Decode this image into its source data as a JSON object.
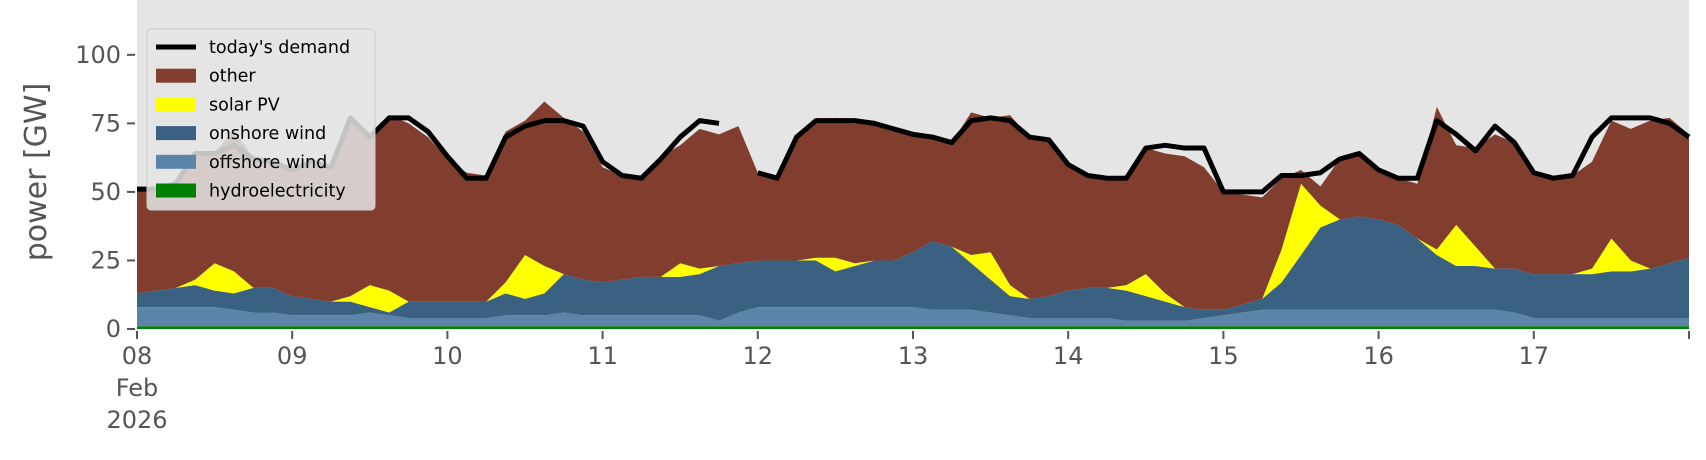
{
  "chart_data": {
    "type": "area",
    "subtype": "stacked area with demand line",
    "title": "",
    "xlabel": "",
    "ylabel": "power [GW]",
    "ylim": [
      0,
      120
    ],
    "xlim": [
      "2026-02-08T00:00",
      "2026-02-18T00:00"
    ],
    "y_ticks": [
      0,
      25,
      50,
      75,
      100
    ],
    "x_ticks": [
      {
        "value": "2026-02-08",
        "label": "08",
        "sublabel_month": "Feb",
        "sublabel_year": "2026"
      },
      {
        "value": "2026-02-09",
        "label": "09"
      },
      {
        "value": "2026-02-10",
        "label": "10"
      },
      {
        "value": "2026-02-11",
        "label": "11"
      },
      {
        "value": "2026-02-12",
        "label": "12"
      },
      {
        "value": "2026-02-13",
        "label": "13"
      },
      {
        "value": "2026-02-14",
        "label": "14"
      },
      {
        "value": "2026-02-15",
        "label": "15"
      },
      {
        "value": "2026-02-16",
        "label": "16"
      },
      {
        "value": "2026-02-17",
        "label": "17"
      }
    ],
    "grid": false,
    "legend_position": "top-left",
    "background": "#e5e5e5",
    "x": [
      "2026-02-08T00:00",
      "2026-02-08T03:00",
      "2026-02-08T06:00",
      "2026-02-08T09:00",
      "2026-02-08T12:00",
      "2026-02-08T15:00",
      "2026-02-08T18:00",
      "2026-02-08T21:00",
      "2026-02-09T00:00",
      "2026-02-09T03:00",
      "2026-02-09T06:00",
      "2026-02-09T09:00",
      "2026-02-09T12:00",
      "2026-02-09T15:00",
      "2026-02-09T18:00",
      "2026-02-09T21:00",
      "2026-02-10T00:00",
      "2026-02-10T03:00",
      "2026-02-10T06:00",
      "2026-02-10T09:00",
      "2026-02-10T12:00",
      "2026-02-10T15:00",
      "2026-02-10T18:00",
      "2026-02-10T21:00",
      "2026-02-11T00:00",
      "2026-02-11T03:00",
      "2026-02-11T06:00",
      "2026-02-11T09:00",
      "2026-02-11T12:00",
      "2026-02-11T15:00",
      "2026-02-11T18:00",
      "2026-02-11T21:00",
      "2026-02-12T00:00",
      "2026-02-12T03:00",
      "2026-02-12T06:00",
      "2026-02-12T09:00",
      "2026-02-12T12:00",
      "2026-02-12T15:00",
      "2026-02-12T18:00",
      "2026-02-12T21:00",
      "2026-02-13T00:00",
      "2026-02-13T03:00",
      "2026-02-13T06:00",
      "2026-02-13T09:00",
      "2026-02-13T12:00",
      "2026-02-13T15:00",
      "2026-02-13T18:00",
      "2026-02-13T21:00",
      "2026-02-14T00:00",
      "2026-02-14T03:00",
      "2026-02-14T06:00",
      "2026-02-14T09:00",
      "2026-02-14T12:00",
      "2026-02-14T15:00",
      "2026-02-14T18:00",
      "2026-02-14T21:00",
      "2026-02-15T00:00",
      "2026-02-15T03:00",
      "2026-02-15T06:00",
      "2026-02-15T09:00",
      "2026-02-15T12:00",
      "2026-02-15T15:00",
      "2026-02-15T18:00",
      "2026-02-15T21:00",
      "2026-02-16T00:00",
      "2026-02-16T03:00",
      "2026-02-16T06:00",
      "2026-02-16T09:00",
      "2026-02-16T12:00",
      "2026-02-16T15:00",
      "2026-02-16T18:00",
      "2026-02-16T21:00",
      "2026-02-17T00:00",
      "2026-02-17T03:00",
      "2026-02-17T06:00",
      "2026-02-17T09:00",
      "2026-02-17T12:00",
      "2026-02-17T15:00",
      "2026-02-17T18:00",
      "2026-02-17T21:00",
      "2026-02-18T00:00"
    ],
    "series": [
      {
        "name": "hydroelectricity",
        "color": "#008000",
        "values": [
          1,
          1,
          1,
          1,
          1,
          1,
          1,
          1,
          1,
          1,
          1,
          1,
          1,
          1,
          1,
          1,
          1,
          1,
          1,
          1,
          1,
          1,
          1,
          1,
          1,
          1,
          1,
          1,
          1,
          1,
          1,
          1,
          1,
          1,
          1,
          1,
          1,
          1,
          1,
          1,
          1,
          1,
          1,
          1,
          1,
          1,
          1,
          1,
          1,
          1,
          1,
          1,
          1,
          1,
          1,
          1,
          1,
          1,
          1,
          1,
          1,
          1,
          1,
          1,
          1,
          1,
          1,
          1,
          1,
          1,
          1,
          1,
          1,
          1,
          1,
          1,
          1,
          1,
          1,
          1,
          1
        ]
      },
      {
        "name": "offshore wind",
        "color": "#5b84a8",
        "values": [
          7,
          7,
          7,
          7,
          7,
          6,
          5,
          5,
          4,
          4,
          4,
          4,
          5,
          4,
          3,
          3,
          3,
          3,
          3,
          4,
          4,
          4,
          5,
          4,
          4,
          4,
          4,
          4,
          4,
          4,
          2,
          5,
          7,
          7,
          7,
          7,
          7,
          7,
          7,
          7,
          7,
          6,
          6,
          6,
          5,
          4,
          3,
          3,
          3,
          3,
          3,
          2,
          2,
          2,
          2,
          3,
          4,
          5,
          6,
          6,
          6,
          6,
          6,
          6,
          6,
          6,
          6,
          6,
          6,
          6,
          6,
          5,
          3,
          3,
          3,
          3,
          3,
          3,
          3,
          3,
          3
        ]
      },
      {
        "name": "onshore wind",
        "color": "#3b6182",
        "values": [
          5,
          6,
          7,
          8,
          6,
          6,
          9,
          9,
          7,
          6,
          5,
          5,
          2,
          1,
          6,
          6,
          6,
          6,
          6,
          8,
          6,
          8,
          14,
          13,
          12,
          13,
          14,
          14,
          14,
          15,
          20,
          18,
          17,
          17,
          17,
          17,
          13,
          15,
          17,
          17,
          20,
          25,
          23,
          17,
          12,
          7,
          7,
          8,
          10,
          11,
          11,
          11,
          9,
          7,
          5,
          3,
          2,
          3,
          4,
          10,
          20,
          30,
          33,
          34,
          33,
          31,
          26,
          20,
          16,
          16,
          15,
          16,
          16,
          16,
          16,
          16,
          17,
          17,
          18,
          20,
          22
        ]
      },
      {
        "name": "solar PV",
        "color": "#ffff00",
        "values": [
          0,
          0,
          0,
          2,
          10,
          8,
          0,
          0,
          0,
          0,
          0,
          2,
          8,
          8,
          0,
          0,
          0,
          0,
          0,
          4,
          16,
          10,
          0,
          0,
          0,
          0,
          0,
          0,
          5,
          2,
          0,
          0,
          0,
          0,
          0,
          1,
          5,
          1,
          0,
          0,
          0,
          0,
          0,
          3,
          10,
          4,
          0,
          0,
          0,
          0,
          0,
          2,
          8,
          3,
          0,
          0,
          0,
          0,
          0,
          12,
          26,
          8,
          0,
          0,
          0,
          0,
          0,
          2,
          15,
          7,
          0,
          0,
          0,
          0,
          0,
          2,
          12,
          4,
          0,
          0,
          0
        ]
      },
      {
        "name": "other",
        "color": "#813e2f",
        "values": [
          38,
          37,
          38,
          46,
          40,
          52,
          47,
          46,
          46,
          50,
          49,
          65,
          54,
          64,
          65,
          60,
          52,
          47,
          46,
          55,
          49,
          60,
          57,
          54,
          42,
          38,
          36,
          44,
          43,
          51,
          48,
          50,
          32,
          30,
          45,
          50,
          51,
          51,
          51,
          48,
          43,
          38,
          38,
          52,
          49,
          62,
          59,
          57,
          45,
          41,
          40,
          40,
          46,
          51,
          55,
          52,
          43,
          40,
          37,
          26,
          5,
          7,
          22,
          23,
          18,
          17,
          20,
          52,
          29,
          36,
          49,
          46,
          37,
          35,
          36,
          39,
          43,
          48,
          54,
          53,
          45
        ]
      }
    ],
    "demand": {
      "name": "today's demand",
      "color": "#000000",
      "values": [
        51,
        51,
        53,
        64,
        64,
        67,
        62,
        61,
        58,
        61,
        59,
        77,
        70,
        77,
        77,
        72,
        63,
        55,
        55,
        70,
        74,
        76,
        76,
        74,
        61,
        56,
        55,
        62,
        70,
        76,
        75,
        76,
        57,
        55,
        70,
        76,
        76,
        76,
        75,
        73,
        71,
        70,
        68,
        76,
        77,
        76,
        70,
        69,
        60,
        56,
        55,
        55,
        66,
        67,
        66,
        66,
        50,
        50,
        50,
        56,
        56,
        57,
        62,
        64,
        58,
        55,
        55,
        76,
        71,
        65,
        74,
        68,
        57,
        55,
        56,
        70,
        77,
        77,
        77,
        75,
        70
      ]
    },
    "gaps": [
      [
        "2026-02-11T18:00",
        "2026-02-12T00:00"
      ],
      [
        "2026-02-16T21:00",
        "2026-02-17T00:00"
      ]
    ]
  }
}
